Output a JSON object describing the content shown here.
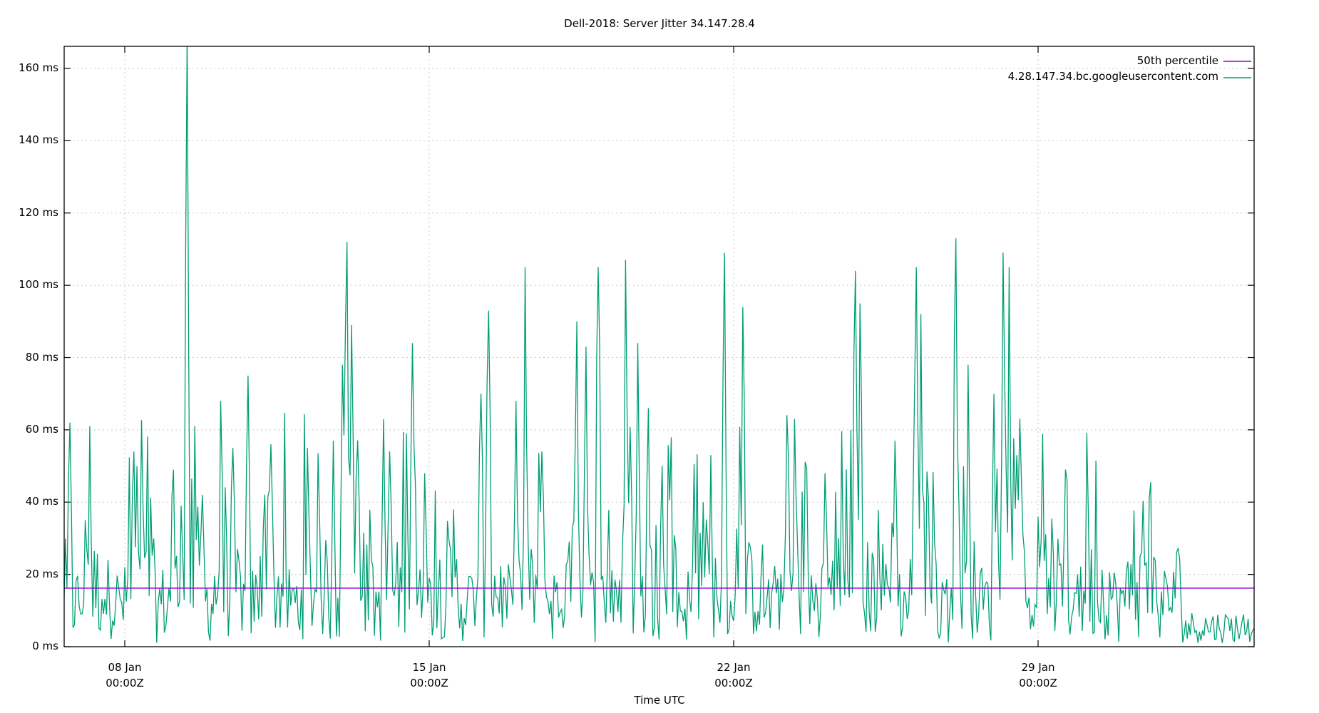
{
  "chart_data": {
    "type": "line",
    "title": "Dell-2018: Server Jitter 34.147.28.4",
    "xlabel": "Time UTC",
    "ylabel": "",
    "ylim": [
      0,
      166
    ],
    "yticks": [
      {
        "value": 0,
        "label": "0 ms"
      },
      {
        "value": 20,
        "label": "20 ms"
      },
      {
        "value": 40,
        "label": "40 ms"
      },
      {
        "value": 60,
        "label": "60 ms"
      },
      {
        "value": 80,
        "label": "80 ms"
      },
      {
        "value": 100,
        "label": "100 ms"
      },
      {
        "value": 120,
        "label": "120 ms"
      },
      {
        "value": 140,
        "label": "140 ms"
      },
      {
        "value": 160,
        "label": "160 ms"
      }
    ],
    "xticks": [
      {
        "day": 8,
        "label1": "08 Jan",
        "label2": "00:00Z"
      },
      {
        "day": 15,
        "label1": "15 Jan",
        "label2": "00:00Z"
      },
      {
        "day": 22,
        "label1": "22 Jan",
        "label2": "00:00Z"
      },
      {
        "day": 29,
        "label1": "29 Jan",
        "label2": "00:00Z"
      }
    ],
    "xlim_days": [
      6.6,
      34.0
    ],
    "grid": true,
    "legend_position": "top-right",
    "series": [
      {
        "name": "50th percentile",
        "color": "#9400d3",
        "constant": 16.2
      },
      {
        "name": "4.28.147.34.bc.googleusercontent.com",
        "color": "#009e73",
        "peaks": [
          {
            "x_day": 6.7,
            "y": 53
          },
          {
            "x_day": 6.75,
            "y": 62
          },
          {
            "x_day": 7.1,
            "y": 35
          },
          {
            "x_day": 7.2,
            "y": 61
          },
          {
            "x_day": 7.6,
            "y": 24
          },
          {
            "x_day": 8.2,
            "y": 54
          },
          {
            "x_day": 9.3,
            "y": 39
          },
          {
            "x_day": 9.45,
            "y": 170
          },
          {
            "x_day": 9.8,
            "y": 42
          },
          {
            "x_day": 10.2,
            "y": 68
          },
          {
            "x_day": 10.5,
            "y": 55
          },
          {
            "x_day": 10.85,
            "y": 75
          },
          {
            "x_day": 11.35,
            "y": 56
          },
          {
            "x_day": 12.2,
            "y": 55
          },
          {
            "x_day": 12.8,
            "y": 57
          },
          {
            "x_day": 13.0,
            "y": 78
          },
          {
            "x_day": 13.1,
            "y": 112
          },
          {
            "x_day": 13.2,
            "y": 89
          },
          {
            "x_day": 13.95,
            "y": 63
          },
          {
            "x_day": 14.1,
            "y": 54
          },
          {
            "x_day": 14.6,
            "y": 84
          },
          {
            "x_day": 14.9,
            "y": 48
          },
          {
            "x_day": 15.55,
            "y": 38
          },
          {
            "x_day": 16.2,
            "y": 70
          },
          {
            "x_day": 16.35,
            "y": 93
          },
          {
            "x_day": 17.0,
            "y": 68
          },
          {
            "x_day": 17.2,
            "y": 105
          },
          {
            "x_day": 17.6,
            "y": 54
          },
          {
            "x_day": 18.4,
            "y": 90
          },
          {
            "x_day": 18.6,
            "y": 83
          },
          {
            "x_day": 18.9,
            "y": 105
          },
          {
            "x_day": 19.5,
            "y": 107
          },
          {
            "x_day": 19.8,
            "y": 84
          },
          {
            "x_day": 20.05,
            "y": 66
          },
          {
            "x_day": 21.3,
            "y": 40
          },
          {
            "x_day": 21.8,
            "y": 109
          },
          {
            "x_day": 22.2,
            "y": 94
          },
          {
            "x_day": 23.4,
            "y": 63
          },
          {
            "x_day": 24.1,
            "y": 48
          },
          {
            "x_day": 24.8,
            "y": 104
          },
          {
            "x_day": 24.9,
            "y": 95
          },
          {
            "x_day": 25.7,
            "y": 57
          },
          {
            "x_day": 26.2,
            "y": 105
          },
          {
            "x_day": 26.3,
            "y": 92
          },
          {
            "x_day": 27.1,
            "y": 113
          },
          {
            "x_day": 27.4,
            "y": 78
          },
          {
            "x_day": 28.0,
            "y": 70
          },
          {
            "x_day": 28.2,
            "y": 109
          },
          {
            "x_day": 28.35,
            "y": 105
          },
          {
            "x_day": 28.5,
            "y": 53
          },
          {
            "x_day": 29.0,
            "y": 36
          },
          {
            "x_day": 29.25,
            "y": 19
          },
          {
            "x_day": 29.9,
            "y": 20
          }
        ],
        "typical_range": [
          1,
          30
        ]
      }
    ]
  },
  "legend": {
    "items": [
      {
        "label": "50th percentile",
        "color": "#9400d3"
      },
      {
        "label": "4.28.147.34.bc.googleusercontent.com",
        "color": "#009e73"
      }
    ]
  }
}
